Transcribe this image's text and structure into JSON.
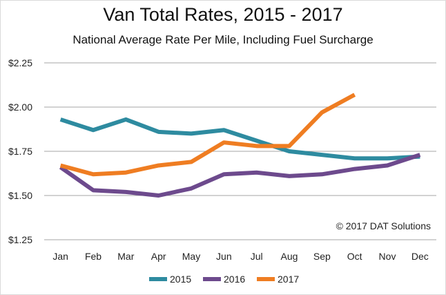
{
  "chart_data": {
    "type": "line",
    "title": "Van Total Rates, 2015 - 2017",
    "subtitle": "National Average Rate Per Mile, Including Fuel Surcharge",
    "xlabel": "",
    "ylabel": "",
    "categories": [
      "Jan",
      "Feb",
      "Mar",
      "Apr",
      "May",
      "Jun",
      "Jul",
      "Aug",
      "Sep",
      "Oct",
      "Nov",
      "Dec"
    ],
    "y_ticks": [
      1.25,
      1.5,
      1.75,
      2.0,
      2.25
    ],
    "y_tick_labels": [
      "$1.25",
      "$1.50",
      "$1.75",
      "$2.00",
      "$2.25"
    ],
    "ylim": [
      1.25,
      2.25
    ],
    "grid": "horizontal",
    "legend_position": "bottom",
    "annotation": "© 2017 DAT Solutions",
    "series": [
      {
        "name": "2015",
        "color": "#2e8ba0",
        "values": [
          1.93,
          1.87,
          1.93,
          1.86,
          1.85,
          1.87,
          1.81,
          1.75,
          1.73,
          1.71,
          1.71,
          1.72
        ]
      },
      {
        "name": "2016",
        "color": "#6d4a8d",
        "values": [
          1.66,
          1.53,
          1.52,
          1.5,
          1.54,
          1.62,
          1.63,
          1.61,
          1.62,
          1.65,
          1.67,
          1.73
        ]
      },
      {
        "name": "2017",
        "color": "#ef7d22",
        "values": [
          1.67,
          1.62,
          1.63,
          1.67,
          1.69,
          1.8,
          1.78,
          1.78,
          1.97,
          2.07,
          null,
          null
        ]
      }
    ]
  }
}
